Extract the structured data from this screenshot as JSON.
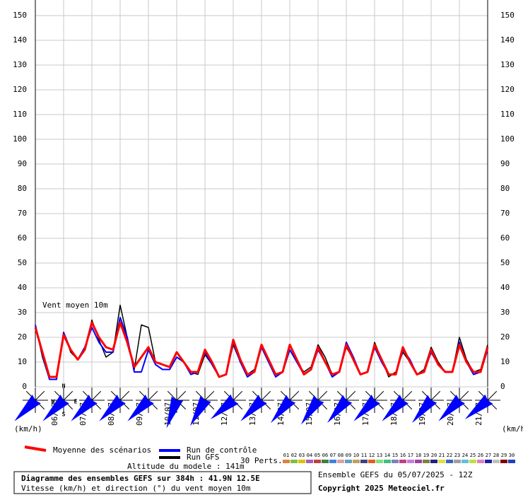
{
  "chart_data": {
    "type": "line",
    "title": "Diagramme des ensembles GEFS sur 384h : 41.9N 12.5E",
    "subtitle": "Vitesse (km/h) et direction (°) du vent moyen 10m",
    "annotation": "Vent moyen 10m",
    "y_unit_label": "(km/h)",
    "altitude": "Altitude du modele : 141m",
    "run_info": "Ensemble GEFS du 05/07/2025 - 12Z",
    "copyright": "Copyright 2025 Meteociel.fr",
    "perturbations_label": "30 Perts.",
    "perturbations": [
      {
        "name": "01",
        "color": "#e08040"
      },
      {
        "name": "02",
        "color": "#80c040"
      },
      {
        "name": "03",
        "color": "#e0c000"
      },
      {
        "name": "04",
        "color": "#a060c0"
      },
      {
        "name": "05",
        "color": "#c04040"
      },
      {
        "name": "06",
        "color": "#408040"
      },
      {
        "name": "07",
        "color": "#4080e0"
      },
      {
        "name": "08",
        "color": "#e0a0a0"
      },
      {
        "name": "09",
        "color": "#60a0c0"
      },
      {
        "name": "10",
        "color": "#c0a060"
      },
      {
        "name": "11",
        "color": "#404080"
      },
      {
        "name": "12",
        "color": "#e06020"
      },
      {
        "name": "13",
        "color": "#80e080"
      },
      {
        "name": "14",
        "color": "#40c080"
      },
      {
        "name": "15",
        "color": "#8080c0"
      },
      {
        "name": "16",
        "color": "#c04080"
      },
      {
        "name": "17",
        "color": "#c080e0"
      },
      {
        "name": "18",
        "color": "#a040a0"
      },
      {
        "name": "19",
        "color": "#808040"
      },
      {
        "name": "20",
        "color": "#202080"
      },
      {
        "name": "21",
        "color": "#e0e040"
      },
      {
        "name": "22",
        "color": "#4060c0"
      },
      {
        "name": "23",
        "color": "#a0a0a0"
      },
      {
        "name": "24",
        "color": "#60c0e0"
      },
      {
        "name": "25",
        "color": "#c0e040"
      },
      {
        "name": "26",
        "color": "#e080c0"
      },
      {
        "name": "27",
        "color": "#2020a0"
      },
      {
        "name": "28",
        "color": "#c0c0c0"
      },
      {
        "name": "29",
        "color": "#800000"
      },
      {
        "name": "30",
        "color": "#2040c0"
      }
    ],
    "categories": [
      null,
      null,
      "06/07",
      null,
      null,
      null,
      "07/07",
      null,
      null,
      null,
      "08/07",
      null,
      null,
      null,
      "09/07",
      null,
      null,
      null,
      "10/07",
      null,
      null,
      null,
      "11/07",
      null,
      null,
      null,
      "12/07",
      null,
      null,
      null,
      "13/07",
      null,
      null,
      null,
      "14/07",
      null,
      null,
      null,
      "15/07",
      null,
      null,
      null,
      "16/07",
      null,
      null,
      null,
      "17/07",
      null,
      null,
      null,
      "18/07",
      null,
      null,
      null,
      "19/07",
      null,
      null,
      null,
      "20/07",
      null,
      null,
      null,
      "21/07",
      null,
      null
    ],
    "series": [
      {
        "name": "Run GFS",
        "color": "#000000",
        "width": 1.5,
        "values": [
          25,
          12,
          3,
          3,
          22,
          14,
          11,
          15,
          27,
          19,
          12,
          14,
          33,
          20,
          7,
          25,
          24,
          10,
          9,
          8,
          14,
          10,
          6,
          5,
          13,
          9,
          4,
          5,
          17,
          10,
          5,
          7,
          16,
          10,
          5,
          6,
          15,
          10,
          6,
          8,
          17,
          12,
          5,
          6,
          16,
          11,
          5,
          6,
          18,
          11,
          4,
          6,
          14,
          10,
          5,
          7,
          16,
          10,
          6,
          6,
          20,
          11,
          6,
          7,
          17
        ]
      },
      {
        "name": "Run de contrôle",
        "color": "#0000ff",
        "width": 2,
        "values": [
          25,
          13,
          3,
          3,
          22,
          15,
          11,
          16,
          24,
          18,
          14,
          14,
          28,
          20,
          6,
          6,
          15,
          9,
          7,
          7,
          12,
          10,
          5,
          6,
          14,
          9,
          4,
          5,
          18,
          10,
          4,
          6,
          16,
          10,
          4,
          6,
          15,
          10,
          5,
          7,
          15,
          10,
          4,
          6,
          18,
          12,
          5,
          6,
          16,
          10,
          5,
          5,
          15,
          11,
          5,
          6,
          14,
          9,
          6,
          6,
          18,
          10,
          5,
          6,
          15
        ]
      },
      {
        "name": "Moyenne des scénarios",
        "color": "#ff0000",
        "width": 3,
        "values": [
          24,
          14,
          4,
          4,
          21,
          15,
          11,
          15,
          26,
          20,
          16,
          15,
          26,
          18,
          8,
          12,
          16,
          10,
          9,
          8,
          14,
          10,
          6,
          6,
          15,
          10,
          4,
          5,
          19,
          11,
          5,
          6,
          17,
          11,
          5,
          6,
          17,
          11,
          5,
          7,
          16,
          10,
          5,
          6,
          17,
          11,
          5,
          6,
          17,
          11,
          5,
          5,
          16,
          10,
          5,
          6,
          15,
          9,
          6,
          6,
          17,
          10,
          6,
          6,
          16
        ]
      }
    ],
    "compass_labels": [
      "N",
      "W",
      "E",
      "S"
    ],
    "wind_directions": [
      225,
      225,
      225,
      225,
      225,
      200,
      210,
      230,
      225,
      220,
      215,
      220,
      225,
      225,
      220,
      225,
      230
    ],
    "ylim": [
      0,
      150
    ],
    "yticks": [
      0,
      10,
      20,
      30,
      40,
      50,
      60,
      70,
      80,
      90,
      100,
      110,
      120,
      130,
      140,
      150
    ],
    "grid": true
  }
}
